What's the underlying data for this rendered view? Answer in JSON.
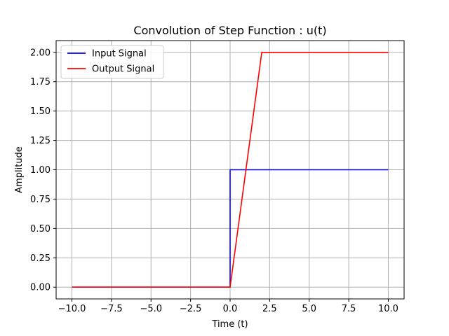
{
  "chart_data": {
    "type": "line",
    "title": "Convolution of Step Function : u(t)",
    "xlabel": "Time (t)",
    "ylabel": "Amplitude",
    "xlim": [
      -11,
      11
    ],
    "ylim": [
      -0.1,
      2.1
    ],
    "xticks": [
      -10.0,
      -7.5,
      -5.0,
      -2.5,
      0.0,
      2.5,
      5.0,
      7.5,
      10.0
    ],
    "xtick_labels": [
      "−10.0",
      "−7.5",
      "−5.0",
      "−2.5",
      "0.0",
      "2.5",
      "5.0",
      "7.5",
      "10.0"
    ],
    "yticks": [
      0.0,
      0.25,
      0.5,
      0.75,
      1.0,
      1.25,
      1.5,
      1.75,
      2.0
    ],
    "ytick_labels": [
      "0.00",
      "0.25",
      "0.50",
      "0.75",
      "1.00",
      "1.25",
      "1.50",
      "1.75",
      "2.00"
    ],
    "grid": true,
    "legend_position": "top-left",
    "series": [
      {
        "name": "Input Signal",
        "color": "#0000ff",
        "x": [
          -10,
          0,
          0,
          10
        ],
        "y": [
          0,
          0,
          1,
          1
        ]
      },
      {
        "name": "Output Signal",
        "color": "#ff0000",
        "x": [
          -10,
          0,
          2,
          10
        ],
        "y": [
          0,
          0,
          2,
          2
        ]
      }
    ]
  }
}
